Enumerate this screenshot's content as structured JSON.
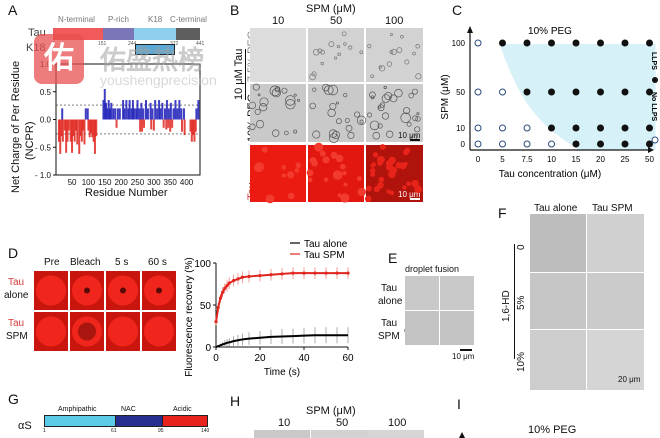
{
  "panels": {
    "A": {
      "label": "A",
      "domain_names": [
        "N-terminal",
        "P-rich",
        "K18",
        "C-terminal"
      ],
      "domain_colors": [
        "#f05a5a",
        "#7b76b8",
        "#8fd0ef",
        "#5e5e5e"
      ],
      "row_labels": [
        "Tau",
        "K18"
      ],
      "ticks": [
        "1",
        "151",
        "244",
        "372",
        "441"
      ],
      "ylabel_line1": "Net Charge of Per Residue",
      "ylabel_line2": "(NCPR)",
      "xlabel": "Residue Number"
    },
    "B": {
      "label": "B",
      "title": "SPM (μM)",
      "columns": [
        "10",
        "50",
        "100"
      ],
      "group_label": "10 μM Tau",
      "rows": [
        "7.5% PEG",
        "10% PEG",
        "Tau"
      ],
      "scale_bar": "10 μm"
    },
    "C": {
      "label": "C",
      "legend_llps": "LLPS",
      "legend_no_llps": "No LLPS"
    },
    "D": {
      "label": "D",
      "columns": [
        "Pre",
        "Bleach",
        "5 s",
        "60 s"
      ],
      "rows": [
        {
          "line1": "Tau",
          "line2": "alone"
        },
        {
          "line1": "Tau",
          "line2": "SPM"
        }
      ]
    },
    "E": {
      "label": "E",
      "title": "droplet fusion",
      "rows": [
        {
          "line1": "Tau",
          "line2": "alone"
        },
        {
          "line1": "Tau",
          "line2": "SPM"
        }
      ],
      "scale_bar": "10 μm"
    },
    "F": {
      "label": "F",
      "columns": [
        "Tau alone",
        "Tau SPM"
      ],
      "group_label": "1,6-HD",
      "rows": [
        "0",
        "5%",
        "10%"
      ],
      "scale_bar": "20 μm"
    },
    "G": {
      "label": "G",
      "protein": "αS",
      "domains": [
        "Amphipathic",
        "NAC",
        "Acidic"
      ],
      "domain_colors": [
        "#5ccbe8",
        "#262f8f",
        "#e8231e"
      ],
      "ticks": [
        "1",
        "61",
        "95",
        "140"
      ]
    },
    "H": {
      "label": "H",
      "title": "SPM (μM)",
      "columns": [
        "10",
        "50",
        "100"
      ]
    },
    "I": {
      "label": "I",
      "title": "10% PEG"
    }
  },
  "watermark": {
    "glyph": "佑",
    "name": "佑盛热榜",
    "url": "youshengprecision"
  },
  "chart_data": [
    {
      "type": "bar",
      "panel": "A",
      "title": "",
      "xlabel": "Residue Number",
      "ylabel": "Net Charge of Per Residue (NCPR)",
      "xlim": [
        1,
        441
      ],
      "ylim": [
        -1.0,
        1.0
      ],
      "xticks": [
        50,
        100,
        150,
        200,
        250,
        300,
        350,
        400
      ],
      "yticks": [
        -1.0,
        -0.5,
        0.0,
        0.5,
        1.0
      ],
      "ytick_labels": [
        "- 1.0",
        "- 0.5",
        "0.0",
        "0.5",
        "1.0"
      ],
      "threshold_lines": [
        0.26,
        -0.26
      ],
      "series": [
        {
          "name": "negative",
          "color": "#e0261e",
          "x": [
            10,
            14,
            18,
            22,
            28,
            32,
            36,
            40,
            46,
            50,
            54,
            58,
            62,
            66,
            72,
            76,
            80,
            84,
            88,
            100,
            104,
            108,
            112,
            116,
            120,
            124,
            186,
            258,
            264,
            270,
            292,
            300,
            330,
            338,
            344,
            350,
            356,
            386,
            394,
            412,
            416,
            420,
            424,
            428
          ],
          "y": [
            -0.4,
            -0.62,
            -0.3,
            -0.4,
            -0.2,
            -0.6,
            -0.4,
            -0.2,
            -0.4,
            -0.6,
            -0.3,
            -0.4,
            -0.2,
            -0.45,
            -0.62,
            -0.3,
            -0.4,
            -0.2,
            -0.45,
            -0.2,
            -0.32,
            -0.25,
            -0.32,
            -0.4,
            -0.62,
            -0.3,
            -0.15,
            -0.22,
            -0.22,
            -0.15,
            -0.18,
            -0.2,
            -0.15,
            -0.18,
            -0.15,
            -0.22,
            -0.15,
            -0.22,
            -0.28,
            -0.22,
            -0.4,
            -0.28,
            -0.4,
            -0.22
          ]
        },
        {
          "name": "positive",
          "color": "#1c1cb8",
          "x": [
            20,
            92,
            98,
            146,
            150,
            154,
            158,
            162,
            166,
            170,
            176,
            182,
            190,
            196,
            206,
            210,
            216,
            222,
            226,
            232,
            236,
            240,
            246,
            250,
            256,
            262,
            268,
            276,
            282,
            290,
            296,
            304,
            310,
            316,
            320,
            326,
            334,
            340,
            346,
            352,
            360,
            366,
            372,
            378,
            384,
            392,
            430,
            436
          ],
          "y": [
            0.2,
            0.2,
            0.2,
            0.35,
            0.55,
            0.3,
            0.2,
            0.35,
            0.2,
            0.3,
            0.2,
            0.2,
            0.2,
            0.2,
            0.35,
            0.2,
            0.35,
            0.2,
            0.35,
            0.2,
            0.35,
            0.2,
            0.2,
            0.35,
            0.2,
            0.3,
            0.2,
            0.35,
            0.2,
            0.3,
            0.2,
            0.35,
            0.2,
            0.35,
            0.2,
            0.3,
            0.2,
            0.35,
            0.2,
            0.3,
            0.2,
            0.35,
            0.2,
            0.35,
            0.2,
            0.2,
            0.2,
            0.35
          ]
        }
      ]
    },
    {
      "type": "scatter",
      "panel": "C",
      "title": "10% PEG",
      "xlabel": "Tau concentration (μM)",
      "ylabel": "SPM (μM)",
      "categories_x": [
        "0",
        "5",
        "7.5",
        "10",
        "15",
        "20",
        "25",
        "50"
      ],
      "categories_y": [
        "0",
        "10",
        "50",
        "100"
      ],
      "legend": [
        {
          "label": "LLPS",
          "marker": "filled"
        },
        {
          "label": "No LLPS",
          "marker": "open"
        }
      ],
      "legend_position": "right",
      "phase_region_color": "#d7f1f8",
      "llps": [
        [
          0,
          0,
          0,
          0,
          1,
          1,
          1,
          1
        ],
        [
          0,
          0,
          0,
          1,
          1,
          1,
          1,
          1
        ],
        [
          0,
          0,
          1,
          1,
          1,
          1,
          1,
          1
        ],
        [
          0,
          1,
          1,
          1,
          1,
          1,
          1,
          1
        ]
      ]
    },
    {
      "type": "line",
      "panel": "D",
      "title": "",
      "xlabel": "Time (s)",
      "ylabel": "Fluorescence recovery (%)",
      "xlim": [
        0,
        60
      ],
      "ylim": [
        0,
        100
      ],
      "xticks": [
        0,
        20,
        40,
        60
      ],
      "yticks": [
        0,
        50,
        100
      ],
      "legend_position": "top-right",
      "x": [
        0,
        1,
        2,
        3,
        4,
        5,
        6,
        8,
        10,
        12,
        15,
        20,
        25,
        30,
        35,
        40,
        45,
        50,
        55,
        60
      ],
      "series": [
        {
          "name": "Tau alone",
          "color": "#000000",
          "values": [
            0,
            1,
            2,
            3,
            4,
            5,
            5.5,
            7,
            8,
            9,
            10,
            11,
            12,
            12.5,
            13,
            13.5,
            14,
            14,
            14,
            14
          ],
          "error": [
            0,
            1,
            2,
            3,
            4,
            4.5,
            5,
            6,
            6.5,
            7,
            7.5,
            8,
            8.5,
            9,
            9,
            9.5,
            9.5,
            9.5,
            9.5,
            9.5
          ]
        },
        {
          "name": "Tau SPM",
          "color": "#e0261e",
          "values": [
            30,
            47,
            58,
            65,
            70,
            73,
            76,
            79,
            81,
            83,
            84,
            85,
            86,
            87,
            88,
            88,
            88,
            88,
            88,
            88
          ],
          "error": [
            4,
            5,
            5,
            6,
            6,
            7,
            7,
            7,
            7,
            7,
            7,
            7,
            7,
            7,
            7,
            7,
            7,
            7,
            7,
            7
          ]
        }
      ]
    }
  ]
}
